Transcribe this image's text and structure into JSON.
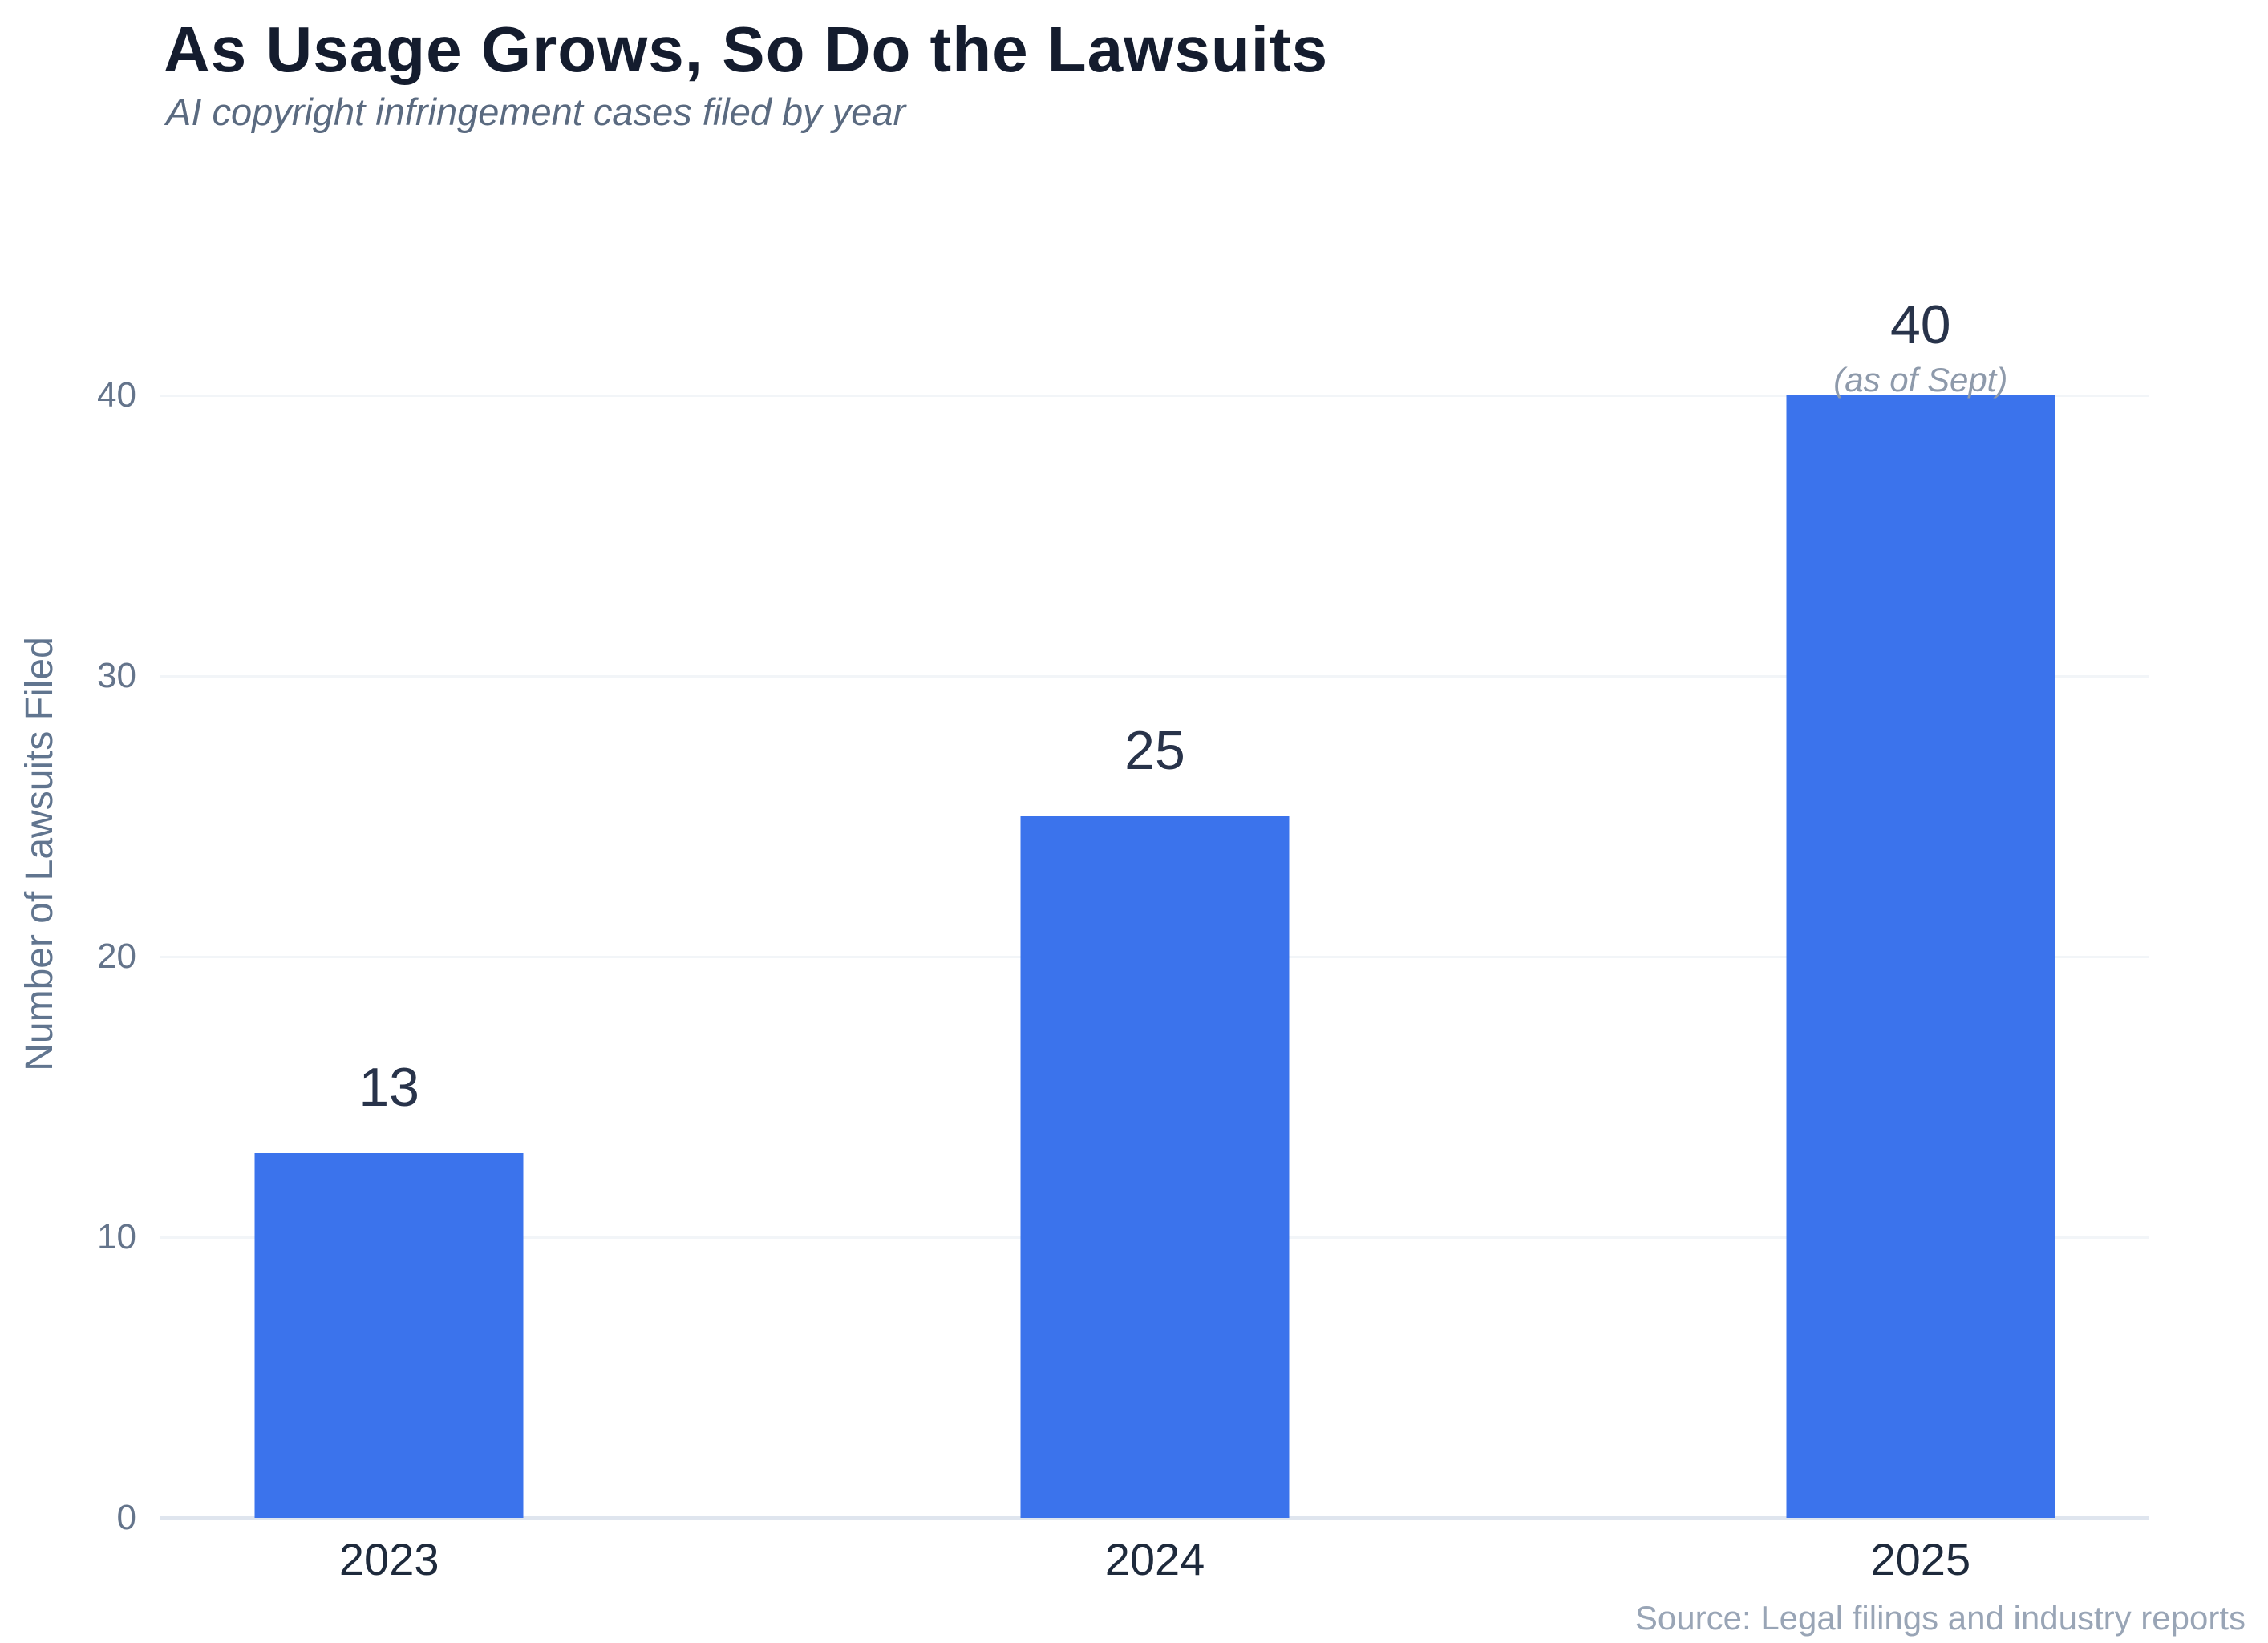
{
  "colors": {
    "background": "#ffffff",
    "bar": "#3b73ec",
    "title": "#141c2e",
    "subtitle": "#5a6a80",
    "value_label": "#28334a",
    "annotation": "#8e9aab",
    "y_tick": "#64748b",
    "x_tick": "#1e2a3c",
    "axis_title": "#61758f",
    "source": "#99a5b6",
    "gridline": "#f2f5f8",
    "baseline": "#dfe5ee"
  },
  "chart_data": {
    "type": "bar",
    "title": "As Usage Grows, So Do the Lawsuits",
    "subtitle": "AI copyright infringement cases filed by year",
    "categories": [
      "2023",
      "2024",
      "2025"
    ],
    "values": [
      13,
      25,
      40
    ],
    "bar_labels": [
      "13",
      "25",
      "40"
    ],
    "annotations": [
      "",
      "",
      "(as of Sept)"
    ],
    "xlabel": "",
    "ylabel": "Number of Lawsuits Filed",
    "yticks": [
      0,
      10,
      20,
      30,
      40
    ],
    "ylim": [
      0,
      48
    ],
    "grid": "horizontal",
    "legend": "none",
    "bar_color": "#3b73ec",
    "source": "Source: Legal filings and industry reports"
  }
}
